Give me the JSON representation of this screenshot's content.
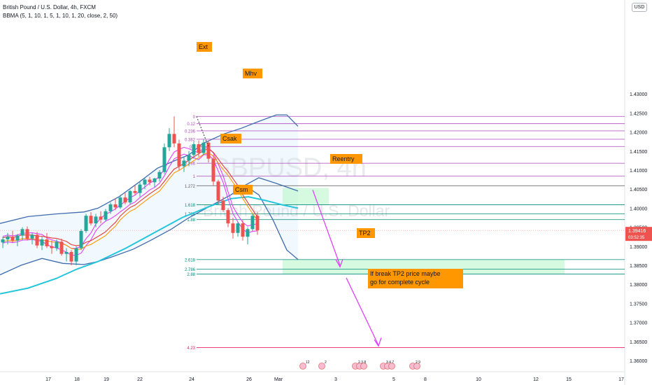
{
  "header": {
    "symbol_line": "British Pound / U.S. Dollar, 4h, FXCM",
    "indicator_line": "BBMA (5, 1, 10, 1, 5, 1, 10, 1, 20, close, 2, 50)",
    "currency_button": "USD"
  },
  "watermark": {
    "ticker": "GBPUSD, 4h",
    "name": "British Pound / U.S. Dollar"
  },
  "colors": {
    "up_candle": "#26a69a",
    "down_candle": "#ef5350",
    "bb_line": "#3f6cae",
    "mid_line": "#26c6da",
    "ma_pink": "#e040fb",
    "ma_red": "#e53935",
    "fib_purple": "#ab47bc",
    "zone_green": "#b9f6ca",
    "label_bg": "#ff9800",
    "arrow_magenta": "#e040fb",
    "price_tag": "#ef5350"
  },
  "chart_data": {
    "type": "candlestick",
    "x_tick_labels": [
      "17",
      "18",
      "19",
      "22",
      "24",
      "26",
      "Mar",
      "3",
      "5",
      "8",
      "10",
      "12",
      "15",
      "17"
    ],
    "y_tick_labels": [
      "1.43000",
      "1.42500",
      "1.42000",
      "1.41500",
      "1.41000",
      "1.40500",
      "1.40000",
      "1.39500",
      "1.39000",
      "1.38500",
      "1.38000",
      "1.37500",
      "1.37000",
      "1.36500",
      "1.36000"
    ],
    "ylim": [
      1.358,
      1.434
    ],
    "current_price": "1.39416",
    "countdown": "03:52:35",
    "fib_levels": [
      {
        "label": "0",
        "price": 1.4241
      },
      {
        "label": "0.12",
        "price": 1.4222
      },
      {
        "label": "0.236",
        "price": 1.4203
      },
      {
        "label": "0.382",
        "price": 1.4181
      },
      {
        "label": "0.5",
        "price": 1.4162
      },
      {
        "label": "0.786",
        "price": 1.4118
      },
      {
        "label": "1",
        "price": 1.4084
      },
      {
        "label": "1.272",
        "price": 1.4059
      },
      {
        "label": "1.618",
        "price": 1.4009
      },
      {
        "label": "1.786",
        "price": 1.3985
      },
      {
        "label": "1.88",
        "price": 1.397
      },
      {
        "label": "2.618",
        "price": 1.3865
      },
      {
        "label": "2.786",
        "price": 1.384
      },
      {
        "label": "2.88",
        "price": 1.3827
      },
      {
        "label": "4.23",
        "price": 1.3634
      }
    ],
    "annotations": [
      {
        "text": "Ext"
      },
      {
        "text": "Mhv"
      },
      {
        "text": "Csak"
      },
      {
        "text": "Reentry"
      },
      {
        "text": "Csm"
      },
      {
        "text": "TP2"
      },
      {
        "text": "If break TP2 price maybe\n go for complete cycle"
      }
    ],
    "event_badges": [
      "12",
      "2",
      "2 3 8",
      "3 4 7",
      "2 9"
    ],
    "candles": [
      {
        "o": 1.391,
        "h": 1.3925,
        "l": 1.3895,
        "c": 1.3918
      },
      {
        "o": 1.3918,
        "h": 1.3935,
        "l": 1.3905,
        "c": 1.3925
      },
      {
        "o": 1.3925,
        "h": 1.394,
        "l": 1.391,
        "c": 1.3915
      },
      {
        "o": 1.3915,
        "h": 1.3932,
        "l": 1.39,
        "c": 1.3928
      },
      {
        "o": 1.3928,
        "h": 1.395,
        "l": 1.3915,
        "c": 1.3945
      },
      {
        "o": 1.3945,
        "h": 1.3952,
        "l": 1.3915,
        "c": 1.392
      },
      {
        "o": 1.392,
        "h": 1.3935,
        "l": 1.3905,
        "c": 1.393
      },
      {
        "o": 1.393,
        "h": 1.3938,
        "l": 1.3895,
        "c": 1.3902
      },
      {
        "o": 1.3902,
        "h": 1.3925,
        "l": 1.389,
        "c": 1.3918
      },
      {
        "o": 1.3918,
        "h": 1.3935,
        "l": 1.3895,
        "c": 1.39
      },
      {
        "o": 1.39,
        "h": 1.3915,
        "l": 1.388,
        "c": 1.3895
      },
      {
        "o": 1.3895,
        "h": 1.3918,
        "l": 1.3888,
        "c": 1.3912
      },
      {
        "o": 1.3912,
        "h": 1.392,
        "l": 1.3875,
        "c": 1.388
      },
      {
        "o": 1.388,
        "h": 1.3895,
        "l": 1.386,
        "c": 1.3885
      },
      {
        "o": 1.3885,
        "h": 1.389,
        "l": 1.385,
        "c": 1.386
      },
      {
        "o": 1.386,
        "h": 1.39,
        "l": 1.385,
        "c": 1.3895
      },
      {
        "o": 1.3895,
        "h": 1.3945,
        "l": 1.389,
        "c": 1.394
      },
      {
        "o": 1.394,
        "h": 1.3985,
        "l": 1.3935,
        "c": 1.398
      },
      {
        "o": 1.398,
        "h": 1.399,
        "l": 1.3955,
        "c": 1.396
      },
      {
        "o": 1.396,
        "h": 1.3985,
        "l": 1.395,
        "c": 1.3978
      },
      {
        "o": 1.3978,
        "h": 1.3992,
        "l": 1.396,
        "c": 1.397
      },
      {
        "o": 1.397,
        "h": 1.3998,
        "l": 1.3965,
        "c": 1.3992
      },
      {
        "o": 1.3992,
        "h": 1.4015,
        "l": 1.3985,
        "c": 1.401
      },
      {
        "o": 1.401,
        "h": 1.4025,
        "l": 1.3995,
        "c": 1.4002
      },
      {
        "o": 1.4002,
        "h": 1.4035,
        "l": 1.3998,
        "c": 1.4028
      },
      {
        "o": 1.4028,
        "h": 1.404,
        "l": 1.401,
        "c": 1.4015
      },
      {
        "o": 1.4015,
        "h": 1.4048,
        "l": 1.401,
        "c": 1.4045
      },
      {
        "o": 1.4045,
        "h": 1.406,
        "l": 1.4035,
        "c": 1.404
      },
      {
        "o": 1.404,
        "h": 1.4068,
        "l": 1.403,
        "c": 1.4062
      },
      {
        "o": 1.4062,
        "h": 1.408,
        "l": 1.405,
        "c": 1.4075
      },
      {
        "o": 1.4075,
        "h": 1.4082,
        "l": 1.406,
        "c": 1.4068
      },
      {
        "o": 1.4068,
        "h": 1.408,
        "l": 1.4055,
        "c": 1.4078
      },
      {
        "o": 1.4078,
        "h": 1.41,
        "l": 1.407,
        "c": 1.4095
      },
      {
        "o": 1.4095,
        "h": 1.417,
        "l": 1.409,
        "c": 1.416
      },
      {
        "o": 1.416,
        "h": 1.421,
        "l": 1.415,
        "c": 1.4195
      },
      {
        "o": 1.4195,
        "h": 1.4241,
        "l": 1.416,
        "c": 1.417
      },
      {
        "o": 1.417,
        "h": 1.418,
        "l": 1.41,
        "c": 1.411
      },
      {
        "o": 1.411,
        "h": 1.4135,
        "l": 1.4095,
        "c": 1.4125
      },
      {
        "o": 1.4125,
        "h": 1.415,
        "l": 1.411,
        "c": 1.414
      },
      {
        "o": 1.414,
        "h": 1.4175,
        "l": 1.413,
        "c": 1.4168
      },
      {
        "o": 1.4168,
        "h": 1.4178,
        "l": 1.4135,
        "c": 1.4145
      },
      {
        "o": 1.4145,
        "h": 1.418,
        "l": 1.414,
        "c": 1.4172
      },
      {
        "o": 1.4172,
        "h": 1.4178,
        "l": 1.412,
        "c": 1.413
      },
      {
        "o": 1.413,
        "h": 1.414,
        "l": 1.406,
        "c": 1.407
      },
      {
        "o": 1.407,
        "h": 1.4075,
        "l": 1.401,
        "c": 1.402
      },
      {
        "o": 1.402,
        "h": 1.403,
        "l": 1.399,
        "c": 1.3995
      },
      {
        "o": 1.3995,
        "h": 1.4,
        "l": 1.395,
        "c": 1.396
      },
      {
        "o": 1.396,
        "h": 1.3975,
        "l": 1.392,
        "c": 1.3935
      },
      {
        "o": 1.3935,
        "h": 1.3965,
        "l": 1.3925,
        "c": 1.396
      },
      {
        "o": 1.396,
        "h": 1.3968,
        "l": 1.3915,
        "c": 1.3925
      },
      {
        "o": 1.3925,
        "h": 1.395,
        "l": 1.3905,
        "c": 1.3945
      },
      {
        "o": 1.3945,
        "h": 1.3985,
        "l": 1.394,
        "c": 1.398
      },
      {
        "o": 1.398,
        "h": 1.399,
        "l": 1.393,
        "c": 1.3942
      }
    ]
  }
}
